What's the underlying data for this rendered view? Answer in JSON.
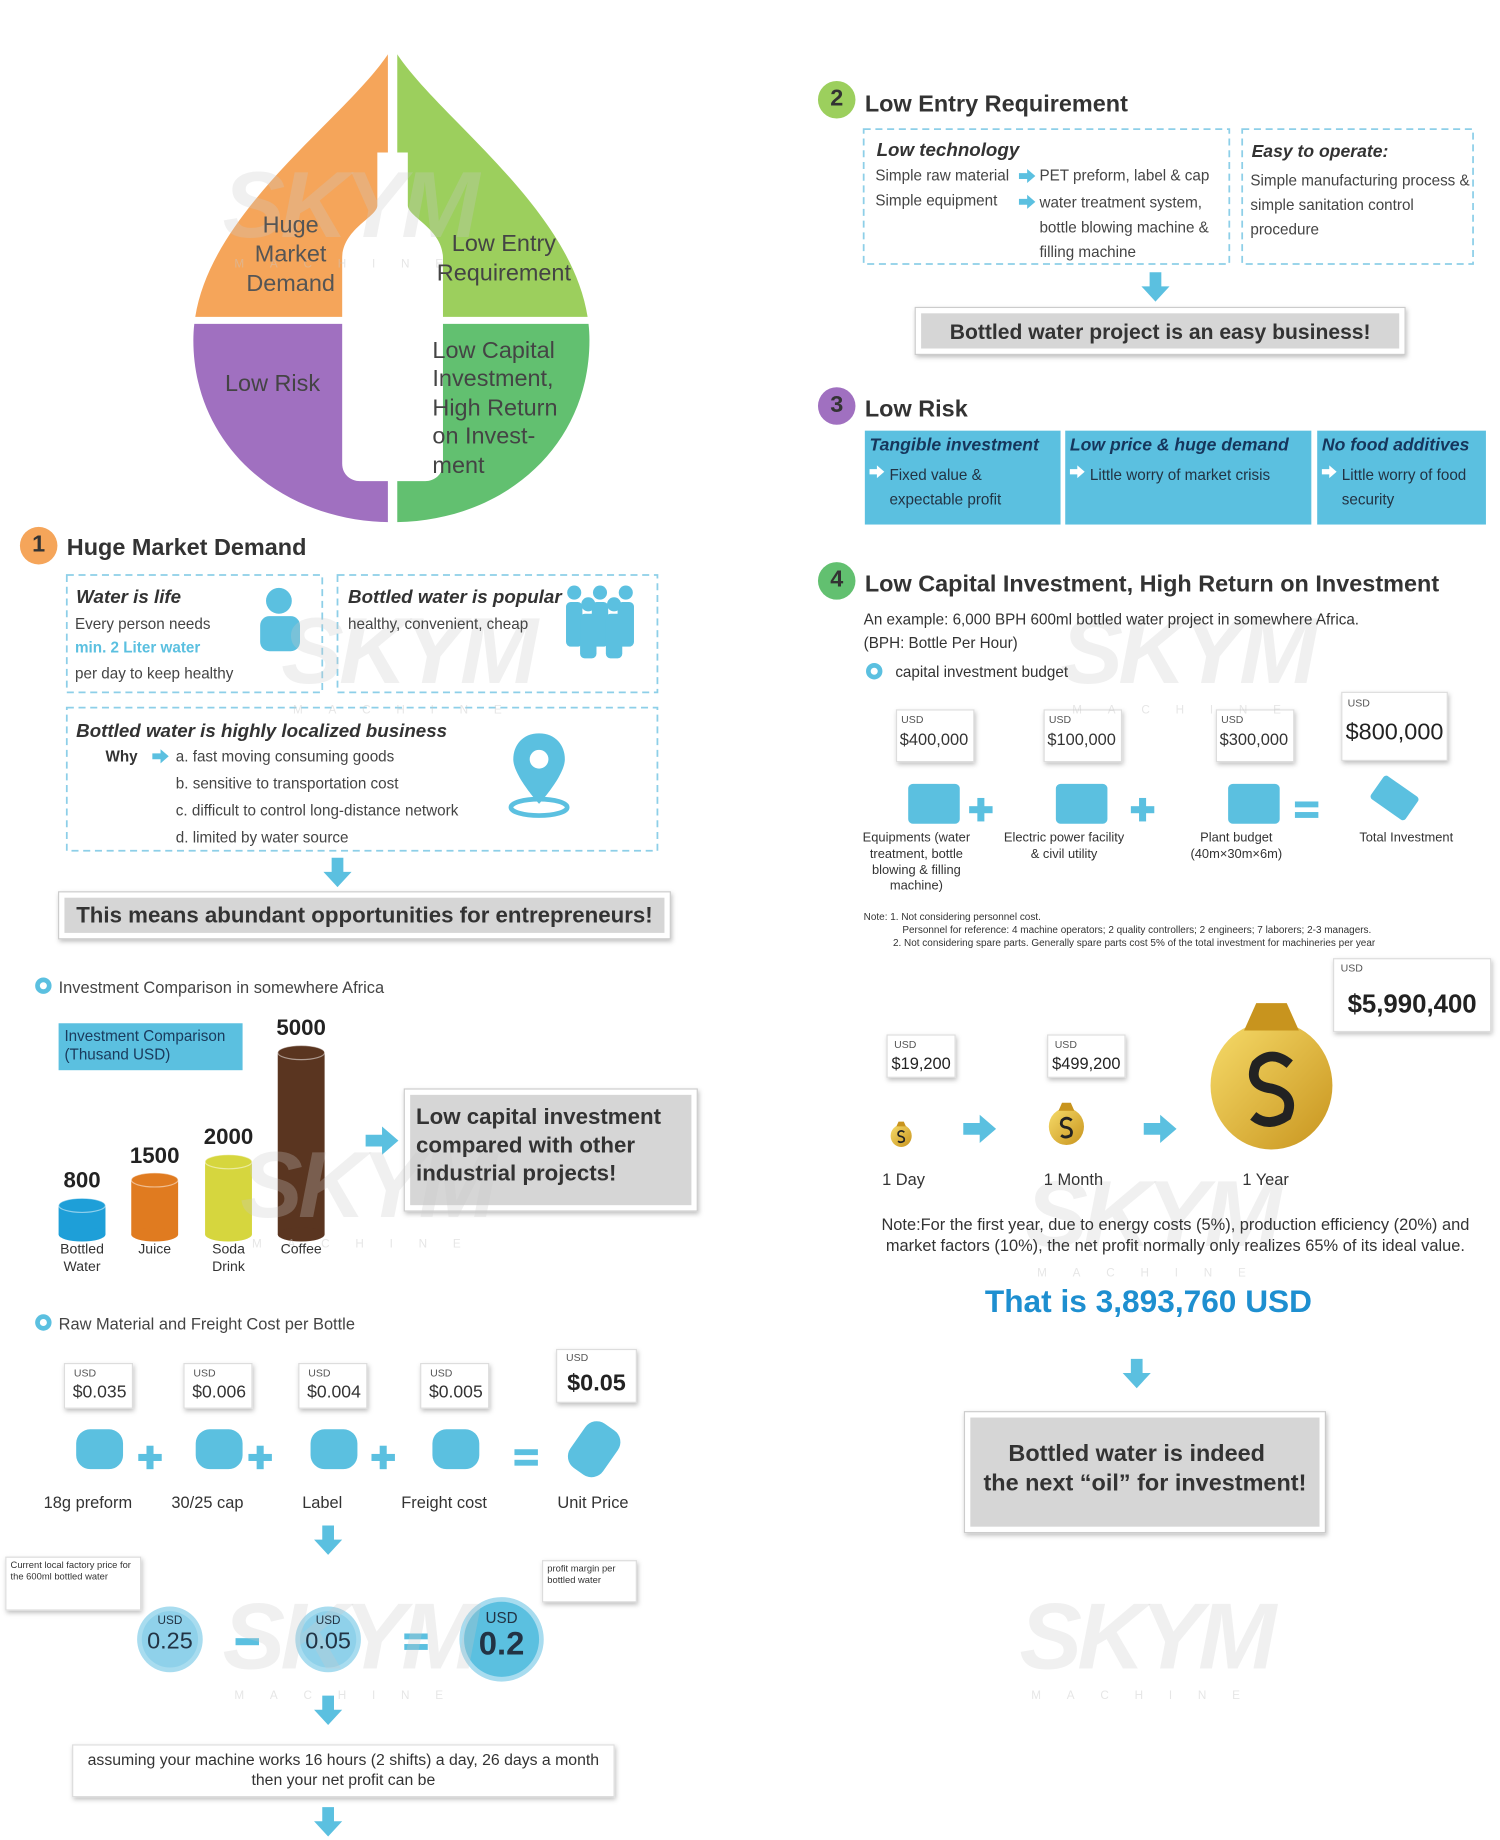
{
  "watermark": {
    "brand": "SKYM",
    "sub": "MACHINE"
  },
  "drop": {
    "q1": "Huge Market Demand",
    "q2": "Low Entry Requirement",
    "q3": "Low Risk",
    "q4": "Low Capital Investment, High Return on Invest-ment"
  },
  "s1": {
    "number": 1,
    "title": "Huge Market Demand",
    "water": {
      "title": "Water is life",
      "line1": "Every person needs",
      "highlight": "min. 2 Liter water",
      "line2": "per day to keep healthy"
    },
    "popular": {
      "title": "Bottled water is popular",
      "text": "healthy, convenient, cheap"
    },
    "local": {
      "title": "Bottled water is highly localized business",
      "why": "Why",
      "reasons": [
        "a. fast moving consuming goods",
        "b. sensitive to transportation cost",
        "c. difficult to control long-distance network",
        "d. limited by water source"
      ]
    },
    "banner": "This means abundant opportunities for entrepreneurs!"
  },
  "comparison": {
    "type": "bar",
    "heading": "Investment Comparison in somewhere Africa",
    "legend": "Investment Comparison (Thusand USD)",
    "categories": [
      "Bottled Water",
      "Juice",
      "Soda Drink",
      "Coffee"
    ],
    "values": [
      800,
      1500,
      2000,
      5000
    ],
    "colors": [
      "#1e9fd8",
      "#e07b20",
      "#d6d63e",
      "#5a3520"
    ],
    "callout": "Low capital investment compared with other industrial projects!"
  },
  "raw": {
    "heading": "Raw Material and Freight Cost per Bottle",
    "items": [
      {
        "currency": "USD",
        "price": "$0.035",
        "label": "18g preform"
      },
      {
        "currency": "USD",
        "price": "$0.006",
        "label": "30/25 cap"
      },
      {
        "currency": "USD",
        "price": "$0.004",
        "label": "Label"
      },
      {
        "currency": "USD",
        "price": "$0.005",
        "label": "Freight cost"
      }
    ],
    "unit": {
      "currency": "USD",
      "price": "$0.05",
      "label": "Unit Price"
    },
    "factory_note": "Current local factory price for the 600ml bottled water",
    "margin_note": "profit margin per bottled water",
    "equation": [
      {
        "currency": "USD",
        "value": 0.25
      },
      {
        "currency": "USD",
        "value": 0.05
      },
      {
        "currency": "USD",
        "value": 0.2
      }
    ],
    "assumption": [
      "assuming your machine works 16 hours (2 shifts) a day, 26 days a month",
      "then your net profit can be"
    ]
  },
  "s2": {
    "number": 2,
    "title": "Low Entry Requirement",
    "tech": {
      "title": "Low technology",
      "rows": [
        {
          "from": "Simple raw material",
          "to": "PET preform, label & cap"
        },
        {
          "from": "Simple equipment",
          "to": "water treatment system, bottle blowing machine & filling machine"
        }
      ]
    },
    "easy": {
      "title": "Easy to operate:",
      "text": "Simple manufacturing process & simple sanitation control procedure"
    },
    "banner": "Bottled water project is an easy business!"
  },
  "s3": {
    "number": 3,
    "title": "Low Risk",
    "boxes": [
      {
        "title": "Tangible investment",
        "text": "Fixed value & expectable profit"
      },
      {
        "title": "Low price & huge demand",
        "text": "Little worry of market crisis"
      },
      {
        "title": "No food additives",
        "text": "Little worry of food security"
      }
    ]
  },
  "s4": {
    "number": 4,
    "title": "Low Capital Investment, High Return on Investment",
    "intro": "An example: 6,000 BPH 600ml bottled water project in somewhere Africa.",
    "bph": "(BPH: Bottle Per Hour)",
    "budget_heading": "capital investment budget",
    "items": [
      {
        "currency": "USD",
        "amount": "$400,000",
        "label": "Equipments (water treatment, bottle blowing & filling machine)"
      },
      {
        "currency": "USD",
        "amount": "$100,000",
        "label": "Electric power facility & civil utility"
      },
      {
        "currency": "USD",
        "amount": "$300,000",
        "label": "Plant budget (40m×30m×6m)"
      }
    ],
    "total": {
      "currency": "USD",
      "amount": "$800,000",
      "label": "Total Investment"
    },
    "notes": [
      "Note: 1. Not considering personnel cost.",
      "Personnel for reference: 4 machine operators; 2 quality controllers; 2 engineers; 7 laborers; 2-3 managers.",
      "2. Not considering spare parts. Generally spare parts cost 5% of the total investment for machineries per year"
    ],
    "returns": [
      {
        "currency": "USD",
        "amount": "$19,200",
        "label": "1 Day"
      },
      {
        "currency": "USD",
        "amount": "$499,200",
        "label": "1 Month"
      },
      {
        "currency": "USD",
        "amount": "$5,990,400",
        "label": "1 Year"
      }
    ],
    "note": "Note:For the first year, due to energy costs (5%), production efficiency (20%) and market factors (10%), the net profit normally only realizes 65% of its ideal value.",
    "result": "That is 3,893,760 USD",
    "conclusion": [
      "Bottled water is indeed",
      "the next “oil” for investment!"
    ]
  }
}
